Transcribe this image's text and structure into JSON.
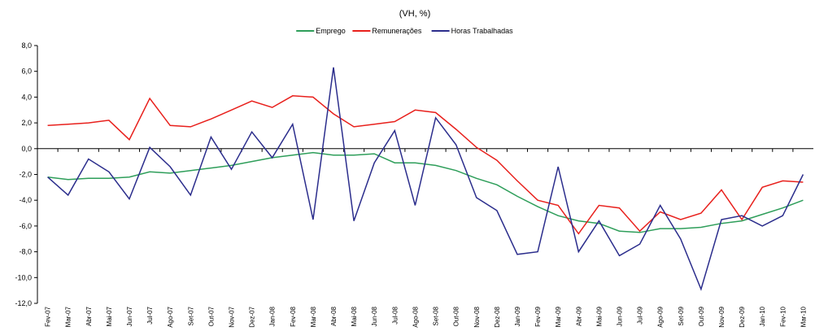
{
  "chart_data": {
    "type": "line",
    "title": "(VH, %)",
    "categories": [
      "Fev-07",
      "Mar-07",
      "Abr-07",
      "Mai-07",
      "Jun-07",
      "Jul-07",
      "Ago-07",
      "Set-07",
      "Out-07",
      "Nov-07",
      "Dez-07",
      "Jan-08",
      "Fev-08",
      "Mar-08",
      "Abr-08",
      "Mai-08",
      "Jun-08",
      "Jul-08",
      "Ago-08",
      "Set-08",
      "Out-08",
      "Nov-08",
      "Dez-08",
      "Jan-09",
      "Fev-09",
      "Mar-09",
      "Abr-09",
      "Mai-09",
      "Jun-09",
      "Jul-09",
      "Ago-09",
      "Set-09",
      "Out-09",
      "Nov-09",
      "Dez-09",
      "Jan-10",
      "Fev-10",
      "Mar-10"
    ],
    "series": [
      {
        "name": "Emprego",
        "color": "#2e9e5a",
        "values": [
          -2.2,
          -2.4,
          -2.3,
          -2.3,
          -2.2,
          -1.8,
          -1.9,
          -1.7,
          -1.5,
          -1.3,
          -1.0,
          -0.7,
          -0.5,
          -0.3,
          -0.5,
          -0.5,
          -0.4,
          -1.1,
          -1.1,
          -1.3,
          -1.7,
          -2.3,
          -2.8,
          -3.7,
          -4.5,
          -5.2,
          -5.6,
          -5.8,
          -6.4,
          -6.5,
          -6.2,
          -6.2,
          -6.1,
          -5.8,
          -5.6,
          -5.1,
          -4.6,
          -4.0
        ]
      },
      {
        "name": "Remunerações",
        "color": "#e8201c",
        "values": [
          1.8,
          1.9,
          2.0,
          2.2,
          0.7,
          3.9,
          1.8,
          1.7,
          2.3,
          3.0,
          3.7,
          3.2,
          4.1,
          4.0,
          2.7,
          1.7,
          1.9,
          2.1,
          3.0,
          2.8,
          1.5,
          0.1,
          -0.9,
          -2.5,
          -4.0,
          -4.4,
          -6.6,
          -4.4,
          -4.6,
          -6.4,
          -4.9,
          -5.5,
          -5.0,
          -3.2,
          -5.5,
          -3.0,
          -2.5,
          -2.6
        ]
      },
      {
        "name": "Horas Trabalhadas",
        "color": "#2b2d8c",
        "values": [
          -2.2,
          -3.6,
          -0.8,
          -1.8,
          -3.9,
          0.1,
          -1.4,
          -3.6,
          0.9,
          -1.6,
          1.3,
          -0.7,
          1.9,
          -5.5,
          6.3,
          -5.6,
          -1.1,
          1.4,
          -4.4,
          2.4,
          0.3,
          -3.8,
          -4.8,
          -8.2,
          -8.0,
          -1.4,
          -8.0,
          -5.6,
          -8.3,
          -7.4,
          -4.4,
          -7.0,
          -10.9,
          -5.5,
          -5.2,
          -6.0,
          -5.2,
          -2.0
        ]
      }
    ],
    "ylim": [
      -12,
      8
    ],
    "yticks": [
      {
        "value": -12,
        "label": "-12,0"
      },
      {
        "value": -10,
        "label": "-10,0"
      },
      {
        "value": -8,
        "label": "-8,0"
      },
      {
        "value": -6,
        "label": "-6,0"
      },
      {
        "value": -4,
        "label": "-4,0"
      },
      {
        "value": -2,
        "label": "-2,0"
      },
      {
        "value": 0,
        "label": "0,0"
      },
      {
        "value": 2,
        "label": "2,0"
      },
      {
        "value": 4,
        "label": "4,0"
      },
      {
        "value": 6,
        "label": "6,0"
      },
      {
        "value": 8,
        "label": "8,0"
      }
    ],
    "grid": false,
    "legend": "top"
  }
}
